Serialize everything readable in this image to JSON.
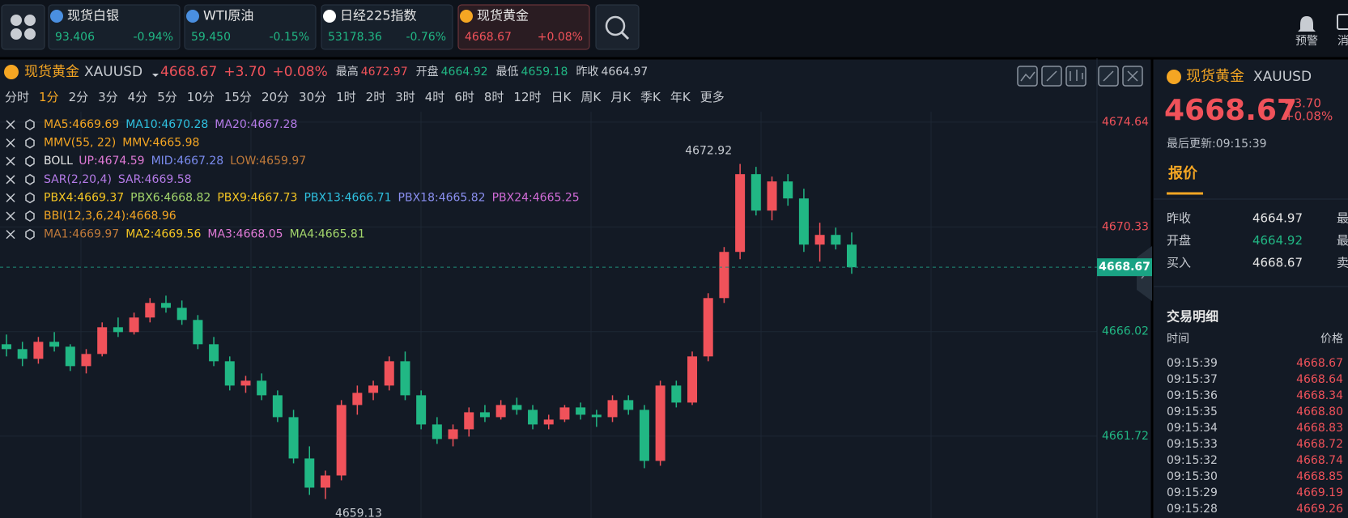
{
  "topbar": {
    "tickers": [
      {
        "name": "现货白银",
        "price": "93.406",
        "change": "-0.94%",
        "color": "#21b784"
      },
      {
        "name": "WTI原油",
        "price": "59.450",
        "change": "-0.15%",
        "color": "#21b784"
      },
      {
        "name": "日经225指数",
        "price": "53178.36",
        "change": "-0.76%",
        "color": "#21b784"
      },
      {
        "name": "现货黄金",
        "price": "4668.67",
        "change": "+0.08%",
        "color": "#f0525a"
      }
    ],
    "alert": "预警",
    "message": "消"
  },
  "header": {
    "name": "现货黄金",
    "code": "XAUUSD",
    "price": "4668.67",
    "change": "+3.70",
    "pct": "+0.08%",
    "stats": [
      {
        "label": "最高",
        "value": "4672.97",
        "color": "#f0525a"
      },
      {
        "label": "开盘",
        "value": "4664.92",
        "color": "#21b784"
      },
      {
        "label": "最低",
        "value": "4659.18",
        "color": "#21b784"
      },
      {
        "label": "昨收",
        "value": "4664.97",
        "color": "#c8ccd2"
      }
    ]
  },
  "periods": {
    "items": [
      "分时",
      "1分",
      "2分",
      "3分",
      "4分",
      "5分",
      "10分",
      "15分",
      "20分",
      "30分",
      "1时",
      "2时",
      "3时",
      "4时",
      "6时",
      "8时",
      "12时",
      "日K",
      "周K",
      "月K",
      "季K",
      "年K",
      "更多"
    ],
    "selected": 1
  },
  "indicators": [
    [
      {
        "text": "MA5:4669.69",
        "color": "#f5a623"
      },
      {
        "text": "MA10:4670.28",
        "color": "#2fc1e0"
      },
      {
        "text": "MA20:4667.28",
        "color": "#b57be8"
      }
    ],
    [
      {
        "text": "MMV(55, 22)",
        "color": "#f5a623"
      },
      {
        "text": "MMV:4665.98",
        "color": "#f5a623"
      }
    ],
    [
      {
        "text": "BOLL",
        "color": "#e6e6e6"
      },
      {
        "text": "UP:4674.59",
        "color": "#e07ad6"
      },
      {
        "text": "MID:4667.28",
        "color": "#7b8cf0"
      },
      {
        "text": "LOW:4659.97",
        "color": "#c07a3a"
      }
    ],
    [
      {
        "text": "SAR(2,20,4)",
        "color": "#b57be8"
      },
      {
        "text": "SAR:4669.58",
        "color": "#b57be8"
      }
    ],
    [
      {
        "text": "PBX4:4669.37",
        "color": "#f5c623"
      },
      {
        "text": "PBX6:4668.82",
        "color": "#a3d66b"
      },
      {
        "text": "PBX9:4667.73",
        "color": "#f5c623"
      },
      {
        "text": "PBX13:4666.71",
        "color": "#2fc1e0"
      },
      {
        "text": "PBX18:4665.82",
        "color": "#8a8ff0"
      },
      {
        "text": "PBX24:4665.25",
        "color": "#d06bd6"
      }
    ],
    [
      {
        "text": "BBI(12,3,6,24):4668.96",
        "color": "#f5a623"
      }
    ],
    [
      {
        "text": "MA1:4669.97",
        "color": "#c07a3a"
      },
      {
        "text": "MA2:4669.56",
        "color": "#f5c623"
      },
      {
        "text": "MA3:4668.05",
        "color": "#e07ad6"
      },
      {
        "text": "MA4:4665.81",
        "color": "#a3d66b"
      }
    ]
  ],
  "chart_data": {
    "type": "candlestick",
    "ylim": [
      4658.35,
      4675.07
    ],
    "yticks": [
      4674.64,
      4670.33,
      4666.02,
      4661.72
    ],
    "up_color": "#f0525a",
    "down_color": "#21b784",
    "grid": true,
    "high_label": "4672.92",
    "low_label": "4659.13",
    "price_tag": "4668.67",
    "open": [
      4665.5,
      4665.3,
      4664.9,
      4665.6,
      4665.4,
      4664.6,
      4665.1,
      4666.2,
      4666.0,
      4666.6,
      4667.2,
      4667.0,
      4666.5,
      4665.5,
      4664.8,
      4663.8,
      4664.0,
      4663.4,
      4662.5,
      4660.8,
      4659.6,
      4660.1,
      4663.0,
      4663.5,
      4663.8,
      4664.8,
      4663.4,
      4662.2,
      4661.6,
      4662.0,
      4662.7,
      4662.5,
      4663.0,
      4662.8,
      4662.2,
      4662.4,
      4662.9,
      4662.6,
      4662.5,
      4663.2,
      4662.8,
      4660.7,
      4663.8,
      4663.1,
      4665.0,
      4667.4,
      4669.3,
      4672.5,
      4671.0,
      4672.2,
      4671.5,
      4669.6,
      4670.0,
      4669.6
    ],
    "high": [
      4665.9,
      4665.6,
      4665.8,
      4666.0,
      4665.5,
      4665.3,
      4666.4,
      4666.6,
      4666.8,
      4667.4,
      4667.5,
      4667.3,
      4666.7,
      4665.8,
      4665.0,
      4664.2,
      4664.3,
      4663.6,
      4662.8,
      4661.3,
      4660.3,
      4663.2,
      4663.8,
      4664.0,
      4665.0,
      4665.2,
      4663.6,
      4662.5,
      4662.2,
      4662.9,
      4663.0,
      4663.2,
      4663.3,
      4663.0,
      4662.6,
      4663.0,
      4663.1,
      4662.8,
      4663.4,
      4663.4,
      4663.0,
      4664.0,
      4664.0,
      4665.2,
      4667.6,
      4669.5,
      4672.92,
      4672.8,
      4672.4,
      4672.5,
      4671.9,
      4670.5,
      4670.3,
      4670.1
    ],
    "low": [
      4665.0,
      4664.6,
      4664.7,
      4665.2,
      4664.4,
      4664.3,
      4665.0,
      4665.8,
      4665.9,
      4666.4,
      4666.8,
      4666.3,
      4665.3,
      4664.6,
      4663.6,
      4663.5,
      4663.2,
      4662.3,
      4660.6,
      4659.3,
      4659.13,
      4659.9,
      4662.6,
      4663.2,
      4663.6,
      4663.2,
      4662.0,
      4661.4,
      4661.3,
      4661.7,
      4662.3,
      4662.4,
      4662.6,
      4662.0,
      4662.0,
      4662.3,
      4662.4,
      4662.1,
      4662.3,
      4662.6,
      4660.4,
      4660.5,
      4662.9,
      4663.0,
      4664.8,
      4667.2,
      4669.0,
      4670.8,
      4670.6,
      4671.2,
      4669.3,
      4668.9,
      4669.4,
      4668.4
    ],
    "close": [
      4665.3,
      4664.9,
      4665.6,
      4665.4,
      4664.6,
      4665.1,
      4666.2,
      4666.0,
      4666.6,
      4667.2,
      4667.0,
      4666.5,
      4665.5,
      4664.8,
      4663.8,
      4664.0,
      4663.4,
      4662.5,
      4660.8,
      4659.6,
      4660.1,
      4663.0,
      4663.5,
      4663.8,
      4664.8,
      4663.4,
      4662.2,
      4661.6,
      4662.0,
      4662.7,
      4662.5,
      4663.0,
      4662.8,
      4662.2,
      4662.4,
      4662.9,
      4662.6,
      4662.5,
      4663.2,
      4662.8,
      4660.7,
      4663.8,
      4663.1,
      4665.0,
      4667.4,
      4669.3,
      4672.5,
      4671.0,
      4672.2,
      4671.5,
      4669.6,
      4670.0,
      4669.6,
      4668.67
    ]
  },
  "side": {
    "name": "现货黄金",
    "code": "XAUUSD",
    "price": "4668.67",
    "change": "+3.70",
    "pct": "+0.08%",
    "updated": "最后更新:09:15:39",
    "tab": "报价",
    "quotes": [
      {
        "label": "昨收",
        "value": "4664.97",
        "color": "#e6e6e6",
        "extra": "最"
      },
      {
        "label": "开盘",
        "value": "4664.92",
        "color": "#21b784",
        "extra": "最"
      },
      {
        "label": "买入",
        "value": "4668.67",
        "color": "#e6e6e6",
        "extra": "卖"
      }
    ],
    "trades_title": "交易明细",
    "time_header": "时间",
    "price_header": "价格",
    "trades": [
      [
        "09:15:39",
        "4668.67"
      ],
      [
        "09:15:37",
        "4668.64"
      ],
      [
        "09:15:36",
        "4668.34"
      ],
      [
        "09:15:35",
        "4668.80"
      ],
      [
        "09:15:34",
        "4668.83"
      ],
      [
        "09:15:33",
        "4668.72"
      ],
      [
        "09:15:32",
        "4668.74"
      ],
      [
        "09:15:30",
        "4668.85"
      ],
      [
        "09:15:29",
        "4669.19"
      ],
      [
        "09:15:28",
        "4669.26"
      ]
    ]
  }
}
